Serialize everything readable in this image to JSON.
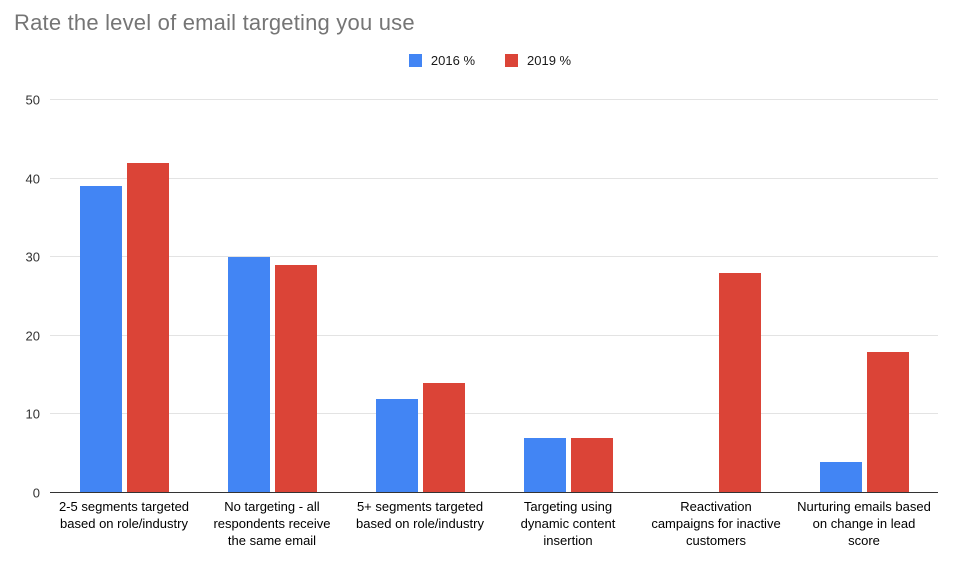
{
  "chart_data": {
    "type": "bar",
    "title": "Rate the level of email targeting you use",
    "categories": [
      "2-5 segments targeted based on role/industry",
      "No targeting - all respondents receive the same email",
      "5+ segments targeted based on role/industry",
      "Targeting using dynamic content insertion",
      "Reactivation campaigns for inactive customers",
      "Nurturing emails based on change in lead score"
    ],
    "series": [
      {
        "name": "2016 %",
        "color": "#4285F4",
        "values": [
          39,
          30,
          12,
          7,
          0,
          4
        ]
      },
      {
        "name": "2019 %",
        "color": "#DB4437",
        "values": [
          42,
          29,
          14,
          7,
          28,
          18
        ]
      }
    ],
    "xlabel": "",
    "ylabel": "",
    "ylim": [
      0,
      50
    ],
    "yticks": [
      0,
      10,
      20,
      30,
      40,
      50
    ],
    "grid": true,
    "legend_position": "top"
  },
  "colors": {
    "title_text": "#757575",
    "axis_line": "#333333",
    "gridline": "#e3e3e3"
  }
}
